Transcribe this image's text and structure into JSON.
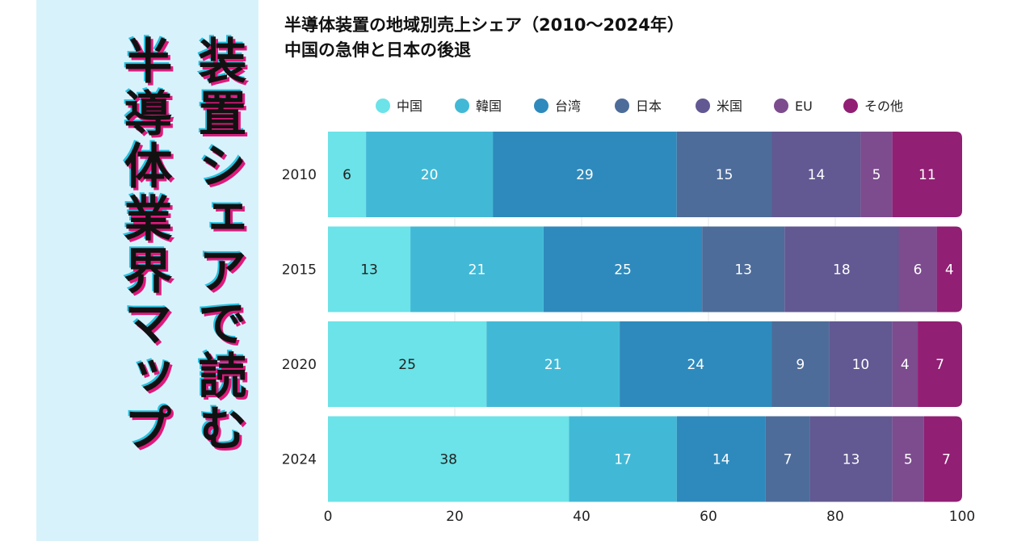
{
  "side_panel": {
    "title_line_1": "半導体業界マップ",
    "title_line_2": "装置シェアで読む"
  },
  "chart_data": {
    "type": "bar",
    "orientation": "horizontal",
    "stacked": true,
    "title": "半導体装置の地域別売上シェア（2010〜2024年）",
    "subtitle": "中国の急伸と日本の後退",
    "xlabel": "",
    "ylabel": "",
    "xlim": [
      0,
      100
    ],
    "x_ticks": [
      0,
      20,
      40,
      60,
      80,
      100
    ],
    "grid": true,
    "legend_position": "top",
    "categories": [
      "2010",
      "2015",
      "2020",
      "2024"
    ],
    "series": [
      {
        "name": "中国",
        "color": "#6be3e8",
        "values": [
          6,
          13,
          25,
          38
        ]
      },
      {
        "name": "韓国",
        "color": "#41b9d6",
        "values": [
          20,
          21,
          21,
          17
        ]
      },
      {
        "name": "台湾",
        "color": "#2e8abc",
        "values": [
          29,
          25,
          24,
          14
        ]
      },
      {
        "name": "日本",
        "color": "#4d6c9a",
        "values": [
          15,
          13,
          9,
          7
        ]
      },
      {
        "name": "米国",
        "color": "#625892",
        "values": [
          14,
          18,
          10,
          13
        ]
      },
      {
        "name": "EU",
        "color": "#7c4c8e",
        "values": [
          5,
          6,
          4,
          5
        ]
      },
      {
        "name": "その他",
        "color": "#911f74",
        "values": [
          11,
          4,
          7,
          7
        ]
      }
    ]
  }
}
